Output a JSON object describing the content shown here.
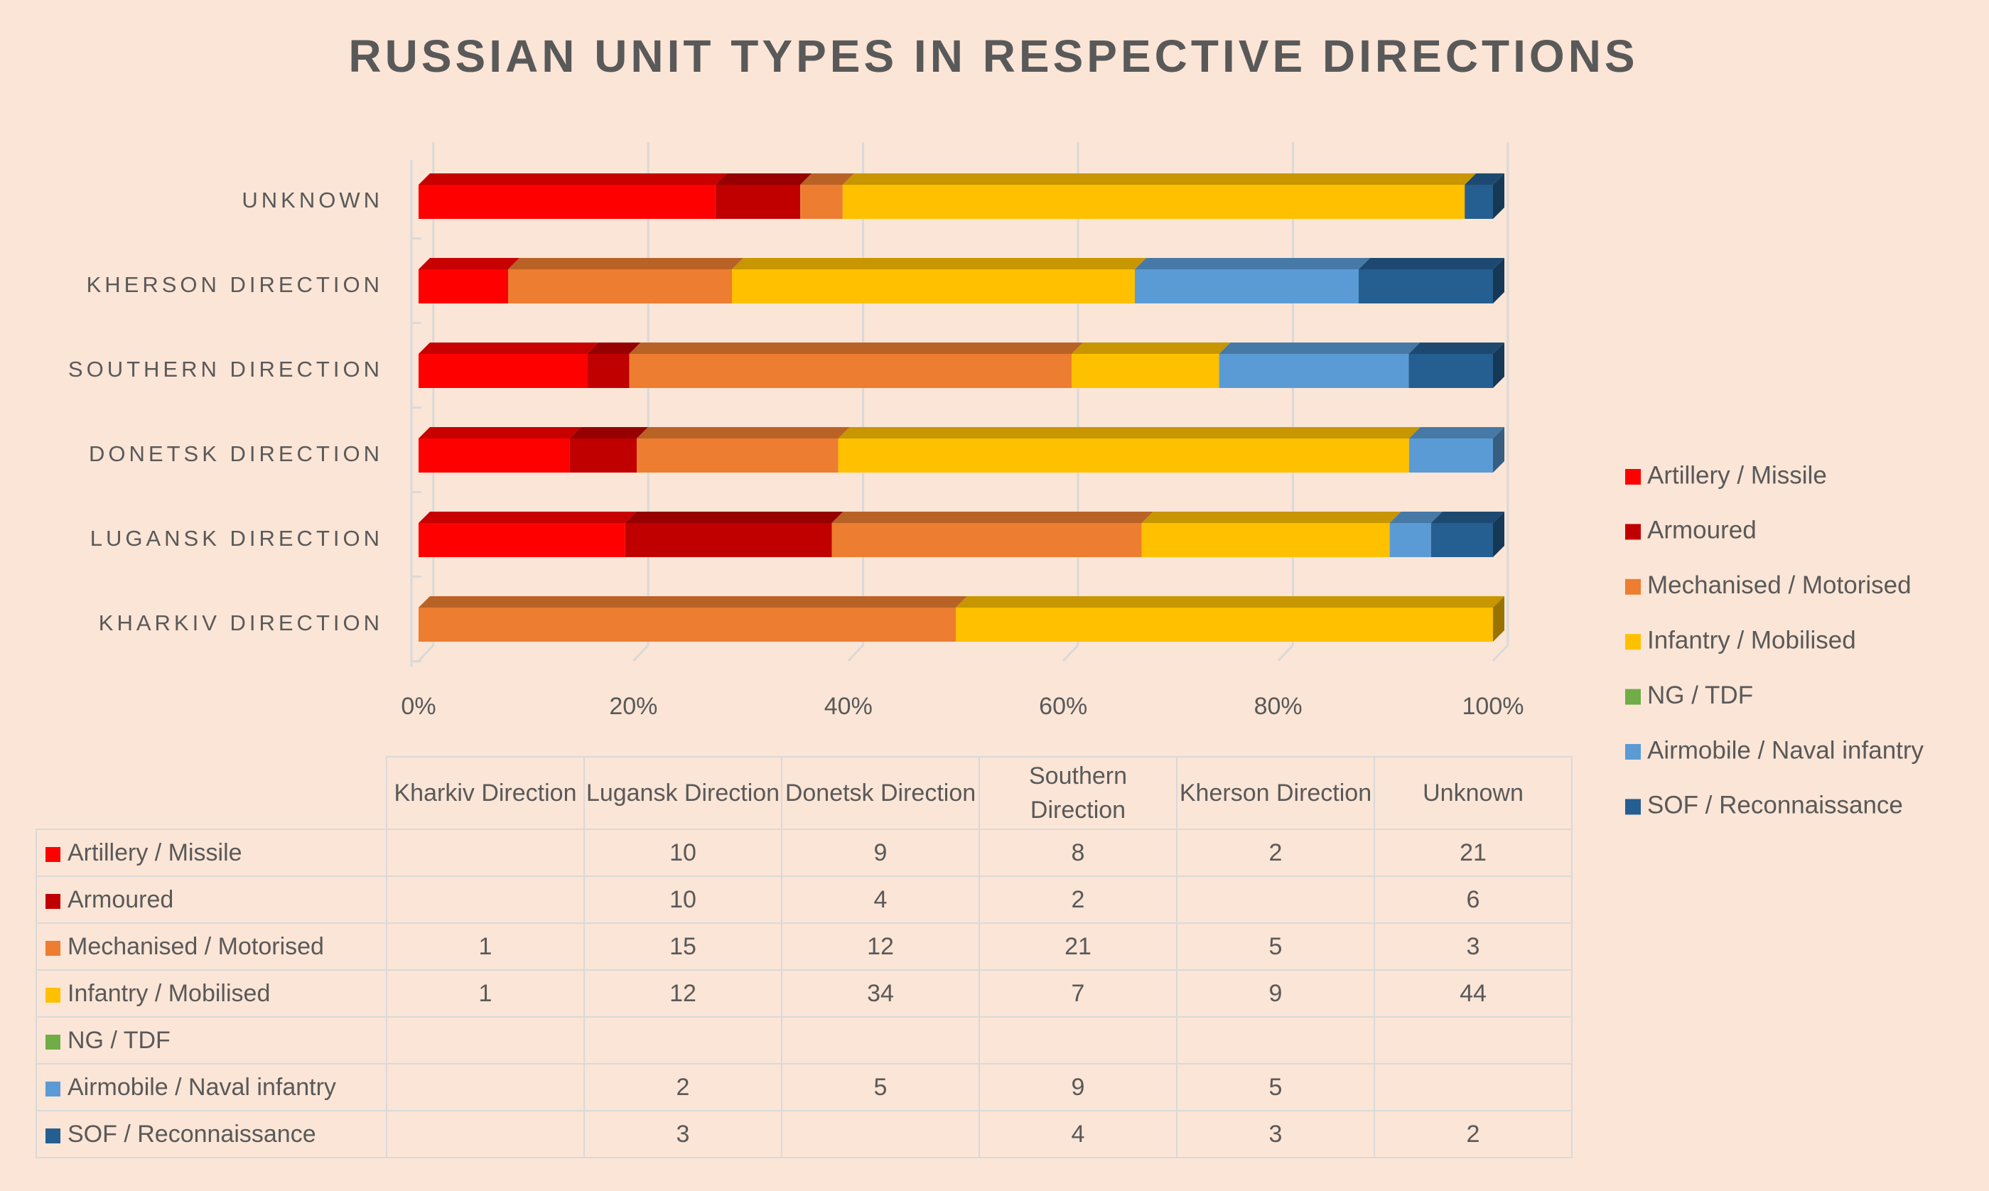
{
  "chart_data": {
    "type": "stacked-percent-bar",
    "title": "RUSSIAN UNIT TYPES IN RESPECTIVE DIRECTIONS",
    "categories": [
      "KHARKIV DIRECTION",
      "LUGANSK DIRECTION",
      "DONETSK DIRECTION",
      "SOUTHERN DIRECTION",
      "KHERSON DIRECTION",
      "UNKNOWN"
    ],
    "series": [
      {
        "name": "Artillery / Missile",
        "color": "#ff0000",
        "values": [
          null,
          10,
          9,
          8,
          2,
          21
        ]
      },
      {
        "name": "Armoured",
        "color": "#c00000",
        "values": [
          null,
          10,
          4,
          2,
          null,
          6
        ]
      },
      {
        "name": "Mechanised / Motorised",
        "color": "#ed7d31",
        "values": [
          1,
          15,
          12,
          21,
          5,
          3
        ]
      },
      {
        "name": "Infantry / Mobilised",
        "color": "#ffc000",
        "values": [
          1,
          12,
          34,
          7,
          9,
          44
        ]
      },
      {
        "name": "NG / TDF",
        "color": "#70ad47",
        "values": [
          null,
          null,
          null,
          null,
          null,
          null
        ]
      },
      {
        "name": "Airmobile / Naval infantry",
        "color": "#5b9bd5",
        "values": [
          null,
          2,
          5,
          9,
          5,
          null
        ]
      },
      {
        "name": "SOF / Reconnaissance",
        "color": "#255e91",
        "values": [
          null,
          3,
          null,
          4,
          3,
          2
        ]
      }
    ],
    "xlim": [
      0,
      100
    ],
    "xticks": [
      {
        "value": 0,
        "label": "0%"
      },
      {
        "value": 20,
        "label": "20%"
      },
      {
        "value": 40,
        "label": "40%"
      },
      {
        "value": 60,
        "label": "60%"
      },
      {
        "value": 80,
        "label": "80%"
      },
      {
        "value": 100,
        "label": "100%"
      }
    ],
    "grid": true,
    "legend": "right",
    "table": {
      "columns": [
        "Kharkiv Direction",
        "Lugansk Direction",
        "Donetsk Direction",
        "Southern Direction",
        "Kherson Direction",
        "Unknown"
      ]
    }
  }
}
